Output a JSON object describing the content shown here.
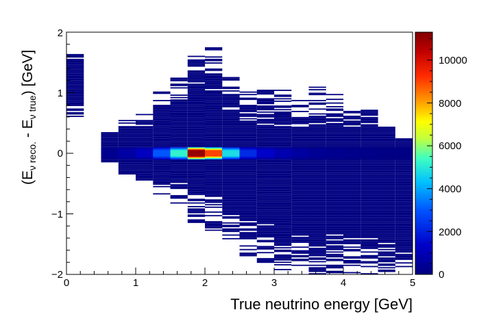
{
  "chart_data": {
    "type": "heatmap",
    "title": "",
    "xlabel": "True neutrino energy [GeV]",
    "ylabel_parts": [
      "(E",
      "ν reco.",
      " - E",
      "ν true",
      ") [GeV]"
    ],
    "xlim": [
      0,
      5
    ],
    "ylim": [
      -2,
      2
    ],
    "x_ticks": [
      "0",
      "1",
      "2",
      "3",
      "4",
      "5"
    ],
    "y_ticks": [
      "−2",
      "−1",
      "0",
      "1",
      "2"
    ],
    "z_range": [
      0,
      11300
    ],
    "colorbar_ticks": [
      "0",
      "2000",
      "4000",
      "6000",
      "8000",
      "10000"
    ],
    "colorbar_tick_values": [
      0,
      2000,
      4000,
      6000,
      8000,
      10000
    ],
    "x_bin_width": 0.25,
    "y_bin_width": 0.02,
    "grid": false,
    "colormap": "ROOT kBird/rainbow (dark blue → cyan → yellow → red → dark red)",
    "core_bins": [
      {
        "x": 0.625,
        "y_lo": -0.1,
        "y_hi": 0.1,
        "value": 300
      },
      {
        "x": 0.875,
        "y_lo": -0.1,
        "y_hi": 0.1,
        "value": 700
      },
      {
        "x": 1.125,
        "y_lo": -0.1,
        "y_hi": 0.1,
        "value": 1200
      },
      {
        "x": 1.375,
        "y_lo": -0.1,
        "y_hi": 0.1,
        "value": 3000
      },
      {
        "x": 1.625,
        "y_lo": -0.1,
        "y_hi": 0.1,
        "value": 5200
      },
      {
        "x": 1.875,
        "y_lo": -0.1,
        "y_hi": 0.1,
        "value": 11000
      },
      {
        "x": 2.125,
        "y_lo": -0.1,
        "y_hi": 0.1,
        "value": 9000
      },
      {
        "x": 2.375,
        "y_lo": -0.1,
        "y_hi": 0.1,
        "value": 4800
      },
      {
        "x": 2.625,
        "y_lo": -0.1,
        "y_hi": 0.1,
        "value": 2200
      },
      {
        "x": 2.875,
        "y_lo": -0.1,
        "y_hi": 0.1,
        "value": 1400
      },
      {
        "x": 3.125,
        "y_lo": -0.1,
        "y_hi": 0.1,
        "value": 900
      },
      {
        "x": 3.375,
        "y_lo": -0.1,
        "y_hi": 0.1,
        "value": 600
      },
      {
        "x": 3.625,
        "y_lo": -0.1,
        "y_hi": 0.1,
        "value": 400
      },
      {
        "x": 3.875,
        "y_lo": -0.1,
        "y_hi": 0.1,
        "value": 300
      },
      {
        "x": 4.125,
        "y_lo": -0.1,
        "y_hi": 0.1,
        "value": 200
      },
      {
        "x": 4.375,
        "y_lo": -0.1,
        "y_hi": 0.1,
        "value": 150
      },
      {
        "x": 4.625,
        "y_lo": -0.1,
        "y_hi": 0.1,
        "value": 100
      },
      {
        "x": 4.875,
        "y_lo": -0.1,
        "y_hi": 0.1,
        "value": 80
      }
    ],
    "populated_extent": [
      {
        "x_lo": 0.0,
        "x_hi": 0.25,
        "y_lo": 0.6,
        "y_hi": 1.7
      },
      {
        "x_lo": 0.5,
        "x_hi": 0.75,
        "y_lo": -0.15,
        "y_hi": 0.35
      },
      {
        "x_lo": 0.75,
        "x_hi": 1.0,
        "y_lo": -0.35,
        "y_hi": 0.55
      },
      {
        "x_lo": 1.0,
        "x_hi": 1.25,
        "y_lo": -0.45,
        "y_hi": 0.65
      },
      {
        "x_lo": 1.25,
        "x_hi": 1.5,
        "y_lo": -0.7,
        "y_hi": 1.1
      },
      {
        "x_lo": 1.5,
        "x_hi": 1.75,
        "y_lo": -0.95,
        "y_hi": 1.3
      },
      {
        "x_lo": 1.75,
        "x_hi": 2.0,
        "y_lo": -1.15,
        "y_hi": 1.65
      },
      {
        "x_lo": 2.0,
        "x_hi": 2.25,
        "y_lo": -1.3,
        "y_hi": 1.75
      },
      {
        "x_lo": 2.25,
        "x_hi": 2.5,
        "y_lo": -1.5,
        "y_hi": 1.3
      },
      {
        "x_lo": 2.5,
        "x_hi": 2.75,
        "y_lo": -1.7,
        "y_hi": 1.05
      },
      {
        "x_lo": 2.75,
        "x_hi": 3.0,
        "y_lo": -1.85,
        "y_hi": 1.15
      },
      {
        "x_lo": 3.0,
        "x_hi": 3.25,
        "y_lo": -1.95,
        "y_hi": 1.05
      },
      {
        "x_lo": 3.25,
        "x_hi": 3.5,
        "y_lo": -2.0,
        "y_hi": 0.95
      },
      {
        "x_lo": 3.5,
        "x_hi": 3.75,
        "y_lo": -2.0,
        "y_hi": 1.1
      },
      {
        "x_lo": 3.75,
        "x_hi": 4.0,
        "y_lo": -2.0,
        "y_hi": 1.0
      },
      {
        "x_lo": 4.0,
        "x_hi": 4.25,
        "y_lo": -2.0,
        "y_hi": 0.85
      },
      {
        "x_lo": 4.25,
        "x_hi": 4.5,
        "y_lo": -2.0,
        "y_hi": 0.75
      },
      {
        "x_lo": 4.5,
        "x_hi": 4.75,
        "y_lo": -2.0,
        "y_hi": 0.5
      },
      {
        "x_lo": 4.75,
        "x_hi": 5.0,
        "y_lo": -2.0,
        "y_hi": 0.25
      }
    ]
  }
}
